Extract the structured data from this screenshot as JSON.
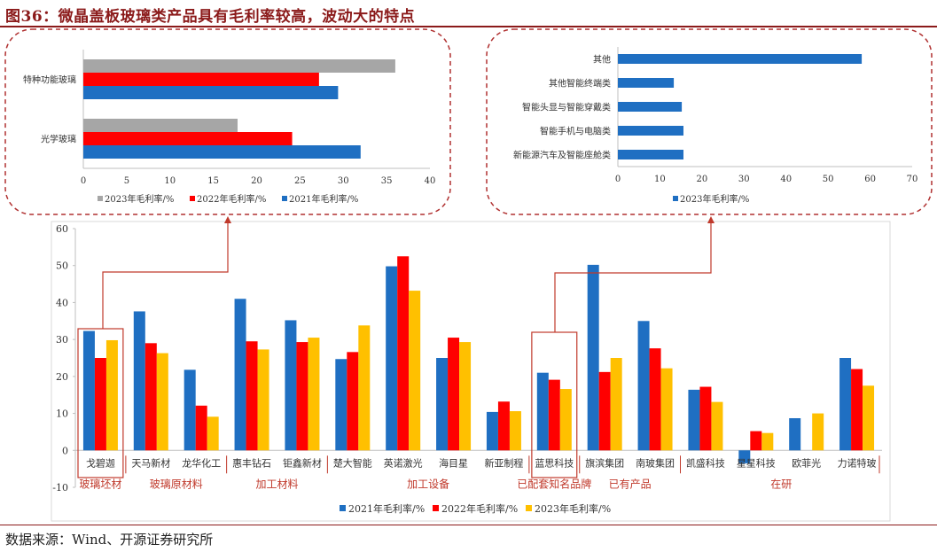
{
  "page": {
    "title": "图36：微晶盖板玻璃类产品具有毛利率较高，波动大的特点",
    "source": "数据来源：Wind、开源证券研究所"
  },
  "colors": {
    "y2021": "#1f6fc2",
    "y2022": "#ff0000",
    "y2023": "#ffc000",
    "gray": "#a6a6a6",
    "accent": "#c0392b",
    "title": "#8b1a1a"
  },
  "chart_data": [
    {
      "id": "main",
      "type": "bar",
      "categories": [
        "戈碧迦",
        "天马新材",
        "龙华化工",
        "惠丰钻石",
        "钜鑫新材",
        "楚大智能",
        "英诺激光",
        "海目星",
        "新亚制程",
        "蓝思科技",
        "旗滨集团",
        "南玻集团",
        "凯盛科技",
        "星星科技",
        "欧菲光",
        "力诺特玻"
      ],
      "series": [
        {
          "name": "2021年毛利率/%",
          "color": "#1f6fc2",
          "values": [
            32.3,
            37.6,
            21.8,
            41.0,
            35.2,
            24.7,
            49.8,
            25.0,
            10.4,
            21.0,
            50.2,
            35.0,
            16.4,
            -3.5,
            8.7,
            25.0
          ]
        },
        {
          "name": "2022年毛利率/%",
          "color": "#ff0000",
          "values": [
            25.0,
            29.0,
            12.1,
            29.5,
            29.3,
            26.6,
            52.5,
            30.5,
            13.2,
            19.1,
            21.2,
            27.6,
            17.2,
            5.2,
            null,
            22.0
          ]
        },
        {
          "name": "2023年毛利率/%",
          "color": "#ffc000",
          "values": [
            29.8,
            26.3,
            9.1,
            27.3,
            30.5,
            33.8,
            43.2,
            29.3,
            10.6,
            16.6,
            25.0,
            22.2,
            13.1,
            4.7,
            10.0,
            17.5
          ]
        }
      ],
      "ylim": [
        -10,
        60
      ],
      "yticks": [
        -10,
        0,
        10,
        20,
        30,
        40,
        50,
        60
      ],
      "groups": [
        {
          "label": "玻璃坯材",
          "from": 0,
          "to": 0
        },
        {
          "label": "玻璃原材料",
          "from": 1,
          "to": 2
        },
        {
          "label": "加工材料",
          "from": 3,
          "to": 4
        },
        {
          "label": "加工设备",
          "from": 5,
          "to": 8
        },
        {
          "label": "已配套知名品牌",
          "from": 9,
          "to": 9
        },
        {
          "label": "已有产品",
          "from": 10,
          "to": 11
        },
        {
          "label": "在研",
          "from": 12,
          "to": 15
        }
      ],
      "legend_position": "bottom"
    },
    {
      "id": "left-inset",
      "type": "bar",
      "orientation": "horizontal",
      "categories": [
        "特种功能玻璃",
        "光学玻璃"
      ],
      "series": [
        {
          "name": "2023年毛利率/%",
          "color": "#a6a6a6",
          "values": [
            36.0,
            17.8
          ]
        },
        {
          "name": "2022年毛利率/%",
          "color": "#ff0000",
          "values": [
            27.2,
            24.1
          ]
        },
        {
          "name": "2021年毛利率/%",
          "color": "#1f6fc2",
          "values": [
            29.4,
            32.0
          ]
        }
      ],
      "xlim": [
        0,
        40
      ],
      "xticks": [
        0,
        5,
        10,
        15,
        20,
        25,
        30,
        35,
        40
      ],
      "legend_position": "bottom"
    },
    {
      "id": "right-inset",
      "type": "bar",
      "orientation": "horizontal",
      "categories": [
        "其他",
        "其他智能终端类",
        "智能头显与智能穿戴类",
        "智能手机与电脑类",
        "新能源汽车及智能座舱类"
      ],
      "series": [
        {
          "name": "2023年毛利率/%",
          "color": "#1f6fc2",
          "values": [
            58.0,
            13.3,
            15.2,
            15.6,
            15.6
          ]
        }
      ],
      "xlim": [
        0,
        70
      ],
      "xticks": [
        0,
        10,
        20,
        30,
        40,
        50,
        60,
        70
      ],
      "legend_position": "bottom"
    }
  ]
}
